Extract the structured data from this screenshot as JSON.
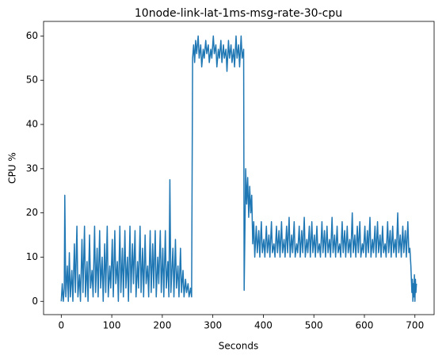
{
  "chart_data": {
    "type": "line",
    "title": "10node-link-lat-1ms-msg-rate-30-cpu",
    "xlabel": "Seconds",
    "ylabel": "CPU %",
    "color": "#1f77b4",
    "xlim": [
      -35,
      738
    ],
    "ylim": [
      -3,
      63.3
    ],
    "xticks": [
      0,
      100,
      200,
      300,
      400,
      500,
      600,
      700
    ],
    "yticks": [
      0,
      10,
      20,
      30,
      40,
      50,
      60
    ],
    "x": [
      0,
      2,
      4,
      6,
      7,
      9,
      12,
      14,
      16,
      18,
      21,
      23,
      26,
      28,
      31,
      33,
      36,
      38,
      41,
      43,
      46,
      48,
      51,
      53,
      56,
      58,
      61,
      63,
      66,
      68,
      71,
      73,
      76,
      78,
      81,
      83,
      86,
      88,
      91,
      93,
      96,
      98,
      101,
      103,
      106,
      108,
      111,
      113,
      116,
      118,
      121,
      123,
      126,
      128,
      131,
      133,
      136,
      138,
      141,
      143,
      146,
      148,
      151,
      153,
      156,
      158,
      161,
      163,
      166,
      168,
      171,
      173,
      176,
      178,
      181,
      183,
      186,
      188,
      191,
      193,
      196,
      198,
      201,
      203,
      206,
      208,
      211,
      213,
      215,
      217,
      221,
      223,
      226,
      228,
      231,
      233,
      236,
      238,
      241,
      243,
      246,
      248,
      251,
      253,
      256,
      258,
      260,
      262,
      264,
      266,
      268,
      271,
      273,
      276,
      278,
      281,
      283,
      286,
      288,
      291,
      293,
      296,
      298,
      301,
      303,
      306,
      308,
      311,
      313,
      316,
      318,
      321,
      323,
      326,
      328,
      331,
      333,
      336,
      338,
      341,
      343,
      346,
      348,
      351,
      353,
      356,
      358,
      361,
      362,
      364,
      365,
      367,
      369,
      371,
      373,
      375,
      377,
      379,
      381,
      383,
      386,
      388,
      391,
      393,
      396,
      398,
      401,
      403,
      406,
      408,
      411,
      413,
      416,
      418,
      421,
      423,
      426,
      428,
      431,
      433,
      436,
      438,
      441,
      443,
      446,
      448,
      451,
      453,
      456,
      458,
      461,
      463,
      466,
      468,
      471,
      473,
      476,
      478,
      481,
      483,
      486,
      488,
      491,
      493,
      496,
      498,
      501,
      503,
      506,
      508,
      511,
      513,
      516,
      518,
      521,
      523,
      526,
      528,
      531,
      533,
      536,
      538,
      541,
      543,
      546,
      548,
      551,
      553,
      556,
      558,
      561,
      563,
      566,
      568,
      571,
      573,
      576,
      578,
      581,
      583,
      586,
      588,
      591,
      593,
      596,
      598,
      601,
      603,
      606,
      608,
      611,
      613,
      616,
      618,
      621,
      623,
      626,
      628,
      631,
      633,
      636,
      638,
      641,
      643,
      646,
      648,
      651,
      653,
      656,
      658,
      661,
      663,
      666,
      668,
      671,
      673,
      676,
      678,
      681,
      683,
      686,
      688,
      690,
      692,
      694,
      695,
      696,
      697,
      698,
      699,
      700,
      701,
      702,
      703
    ],
    "values": [
      0,
      4,
      0,
      3,
      24,
      1,
      8,
      0,
      11,
      1,
      7,
      0,
      13,
      2,
      17,
      1,
      6,
      0,
      14,
      2,
      17,
      1,
      9,
      0,
      15,
      3,
      7,
      1,
      17,
      2,
      12,
      1,
      16,
      3,
      10,
      0,
      13,
      2,
      17,
      1,
      8,
      3,
      14,
      1,
      16,
      4,
      9,
      0,
      17,
      2,
      12,
      1,
      16,
      3,
      10,
      0,
      17,
      2,
      13,
      4,
      16,
      1,
      9,
      3,
      17,
      2,
      12,
      1,
      15,
      4,
      8,
      1,
      16,
      2,
      13,
      3,
      16,
      1,
      10,
      4,
      16,
      2,
      12,
      1,
      16,
      3,
      9,
      1,
      27.5,
      2,
      12,
      1,
      14,
      3,
      8,
      1,
      12,
      2,
      7,
      1,
      5,
      2,
      4,
      1,
      3,
      1,
      55,
      58,
      54,
      59,
      56,
      60,
      55,
      58,
      53,
      57,
      55,
      59,
      56,
      58,
      54,
      57,
      55,
      60,
      56,
      58,
      53,
      57,
      55,
      59,
      54,
      58,
      55,
      57,
      52,
      59,
      55,
      58,
      54,
      57,
      53,
      60,
      55,
      58,
      53,
      60,
      55,
      57,
      2.5,
      20,
      30,
      22,
      28,
      19,
      26,
      20,
      24,
      13,
      18,
      10,
      17,
      11,
      16,
      10,
      18,
      11,
      14,
      10,
      17,
      11,
      15,
      10,
      18,
      11,
      13,
      10,
      17,
      11,
      16,
      10,
      18,
      11,
      14,
      10,
      17,
      11,
      19,
      10,
      15,
      11,
      18,
      10,
      13,
      11,
      17,
      10,
      16,
      11,
      19,
      10,
      14,
      11,
      17,
      10,
      18,
      11,
      15,
      10,
      17,
      11,
      13,
      10,
      18,
      11,
      16,
      10,
      17,
      11,
      14,
      10,
      19,
      11,
      15,
      10,
      17,
      11,
      13,
      10,
      18,
      11,
      16,
      10,
      17,
      11,
      14,
      10,
      20,
      11,
      15,
      10,
      17,
      11,
      18,
      10,
      13,
      11,
      17,
      10,
      16,
      11,
      19,
      10,
      14,
      11,
      17,
      10,
      18,
      11,
      15,
      10,
      17,
      11,
      13,
      10,
      18,
      11,
      16,
      10,
      17,
      11,
      14,
      10,
      20,
      11,
      15,
      10,
      17,
      11,
      16,
      10,
      18,
      11,
      12,
      8,
      2,
      5,
      0,
      4,
      1,
      6,
      0,
      5,
      2,
      4
    ]
  }
}
